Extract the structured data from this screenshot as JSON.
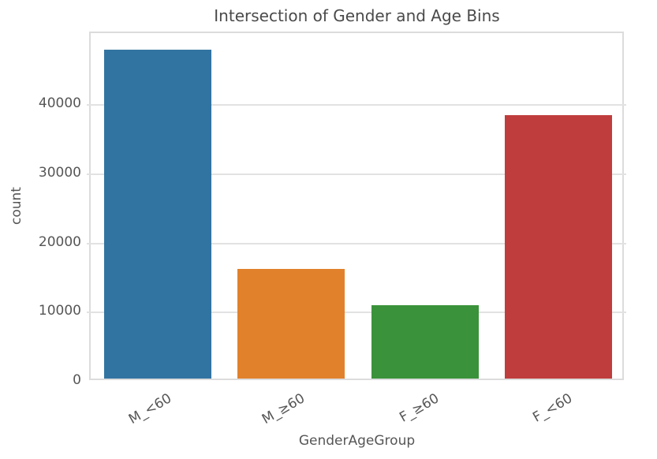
{
  "chart_data": {
    "type": "bar",
    "title": "Intersection of Gender and Age Bins",
    "xlabel": "GenderAgeGroup",
    "ylabel": "count",
    "categories": [
      "M_<60",
      "M_≥60",
      "F_≥60",
      "F_<60"
    ],
    "values": [
      47500,
      15900,
      10600,
      38100
    ],
    "bar_colors": [
      "#3274a1",
      "#e1812c",
      "#3a923a",
      "#c03d3e"
    ],
    "ylim": [
      0,
      50400
    ],
    "yticks": [
      0,
      10000,
      20000,
      30000,
      40000
    ],
    "grid": "horizontal",
    "legend": "none",
    "background_color": "#ffffff",
    "grid_color": "#e2e2e2",
    "spine_color": "#dcdcdc",
    "text_color": "#565656"
  }
}
